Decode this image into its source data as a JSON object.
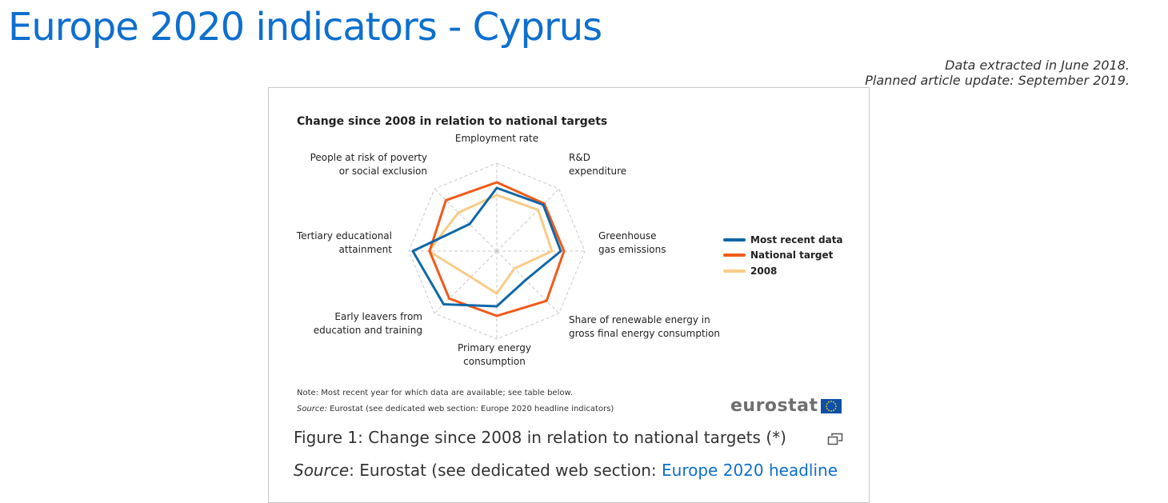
{
  "page": {
    "title": "Europe 2020 indicators - Cyprus",
    "extracted": "Data extracted in June 2018.",
    "update": "Planned article update: September 2019."
  },
  "figure": {
    "caption": "Figure 1: Change since 2008 in relation to national targets (*)",
    "source_label": "Source",
    "source_text": ": Eurostat (see dedicated web section: ",
    "source_link": "Europe 2020 headline",
    "note": "Note: Most recent year for which data are available; see table below.",
    "chart_source_label": "Source:",
    "chart_source_text": " Eurostat (see dedicated web section: Europe 2020 headline indicators)",
    "logo_text": "eurostat",
    "expand_icon": "expand-icon"
  },
  "chart_data": {
    "type": "radar",
    "title": "Change since 2008 in relation to national targets",
    "axes": [
      [
        "Employment rate"
      ],
      [
        "R&D",
        "expenditure"
      ],
      [
        "Greenhouse",
        "gas emissions"
      ],
      [
        "Share of renewable energy in",
        "gross final energy consumption"
      ],
      [
        "Primary energy",
        "consumption"
      ],
      [
        "Early leavers from",
        "education and training"
      ],
      [
        "Tertiary educational",
        "attainment"
      ],
      [
        "People at risk of poverty",
        "or social exclusion"
      ]
    ],
    "series": [
      {
        "name": "Most recent data",
        "color": "#0f67a8",
        "values": [
          0.79,
          0.82,
          0.8,
          0.51,
          0.69,
          0.94,
          1.05,
          0.48
        ]
      },
      {
        "name": "National target",
        "color": "#f05a1a",
        "values": [
          0.86,
          0.84,
          0.84,
          0.88,
          0.81,
          0.84,
          0.84,
          0.9
        ]
      },
      {
        "name": "2008",
        "color": "#f8cc88",
        "values": [
          0.7,
          0.73,
          0.69,
          0.31,
          0.53,
          0.46,
          0.85,
          0.68
        ]
      }
    ],
    "rmax": 1.1,
    "grid": "dashed octagon",
    "legend_position": "right"
  }
}
